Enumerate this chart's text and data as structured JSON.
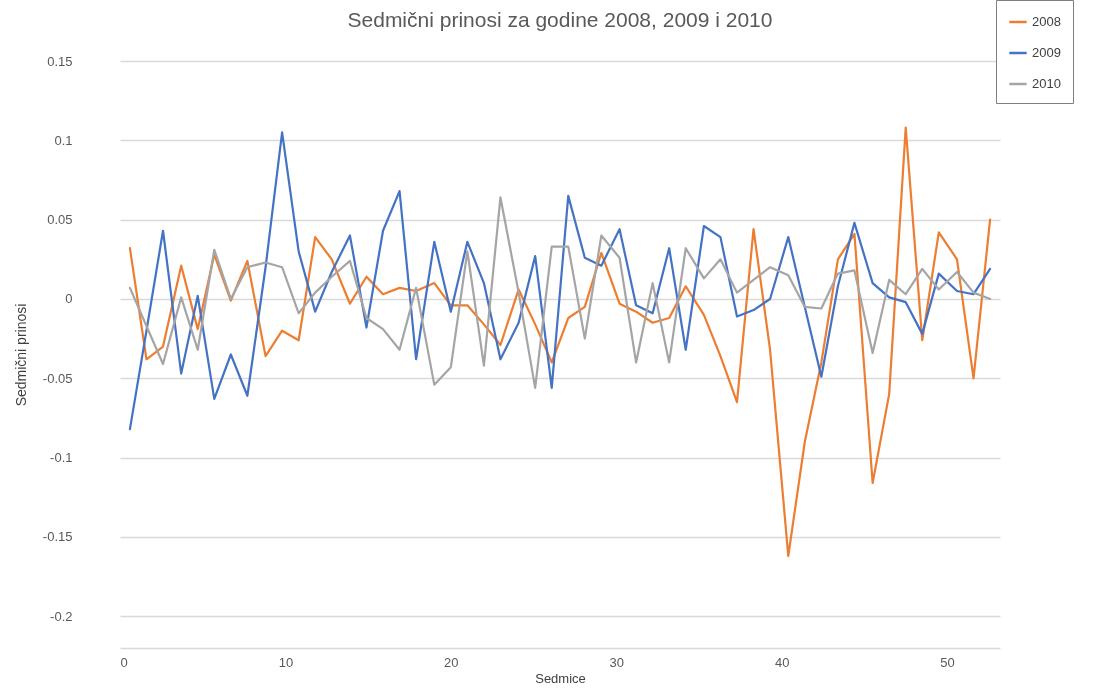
{
  "chart_data": {
    "type": "line",
    "title": "Sedmični prinosi za godine 2008, 2009 i 2010",
    "xlabel": "Sedmice",
    "ylabel": "Sedmični prinosi",
    "x": [
      0.6,
      1.6,
      2.6,
      3.7,
      4.7,
      5.7,
      6.7,
      7.7,
      8.8,
      9.8,
      10.8,
      11.8,
      12.8,
      13.9,
      14.9,
      15.9,
      16.9,
      17.9,
      19.0,
      20.0,
      21.0,
      22.0,
      23.0,
      24.1,
      25.1,
      26.1,
      27.1,
      28.1,
      29.1,
      30.2,
      31.2,
      32.2,
      33.2,
      34.2,
      35.3,
      36.3,
      37.3,
      38.3,
      39.3,
      40.4,
      41.4,
      42.4,
      43.4,
      44.4,
      45.5,
      46.5,
      47.5,
      48.5,
      49.5,
      50.6,
      51.6,
      52.6
    ],
    "series": [
      {
        "name": "2008",
        "color": "#ed7d31",
        "values": [
          0.032,
          -0.038,
          -0.03,
          0.021,
          -0.019,
          0.028,
          -0.001,
          0.024,
          -0.036,
          -0.02,
          -0.026,
          0.039,
          0.025,
          -0.003,
          0.014,
          0.003,
          0.007,
          0.005,
          0.01,
          -0.004,
          -0.004,
          -0.016,
          -0.029,
          0.006,
          -0.016,
          -0.04,
          -0.012,
          -0.005,
          0.029,
          -0.003,
          -0.008,
          -0.015,
          -0.012,
          0.008,
          -0.01,
          -0.036,
          -0.065,
          0.044,
          -0.032,
          -0.162,
          -0.09,
          -0.04,
          0.025,
          0.041,
          -0.116,
          -0.06,
          0.108,
          -0.026,
          0.042,
          0.025,
          -0.05,
          0.05
        ]
      },
      {
        "name": "2009",
        "color": "#4472c4",
        "values": [
          -0.082,
          -0.02,
          0.043,
          -0.047,
          0.002,
          -0.063,
          -0.035,
          -0.061,
          0.02,
          0.105,
          0.03,
          -0.008,
          0.017,
          0.04,
          -0.018,
          0.043,
          0.068,
          -0.038,
          0.036,
          -0.008,
          0.036,
          0.01,
          -0.038,
          -0.015,
          0.027,
          -0.056,
          0.065,
          0.026,
          0.021,
          0.044,
          -0.004,
          -0.009,
          0.032,
          -0.032,
          0.046,
          0.039,
          -0.011,
          -0.007,
          0.0,
          0.039,
          -0.005,
          -0.049,
          0.008,
          0.048,
          0.01,
          0.001,
          -0.002,
          -0.022,
          0.016,
          0.005,
          0.003,
          0.019
        ]
      },
      {
        "name": "2010",
        "color": "#a5a5a5",
        "values": [
          0.007,
          -0.017,
          -0.041,
          0.001,
          -0.032,
          0.031,
          0.0,
          0.02,
          0.023,
          0.02,
          -0.009,
          0.004,
          0.014,
          0.024,
          -0.012,
          -0.019,
          -0.032,
          0.007,
          -0.054,
          -0.043,
          0.03,
          -0.042,
          0.064,
          0.004,
          -0.056,
          0.033,
          0.033,
          -0.025,
          0.04,
          0.026,
          -0.04,
          0.01,
          -0.04,
          0.032,
          0.013,
          0.025,
          0.004,
          0.012,
          0.02,
          0.015,
          -0.005,
          -0.006,
          0.016,
          0.018,
          -0.034,
          0.012,
          0.003,
          0.019,
          0.006,
          0.017,
          0.004,
          0.0
        ]
      }
    ],
    "xlim": [
      0,
      53.2
    ],
    "xticks": [
      0,
      10,
      20,
      30,
      40,
      50
    ],
    "ylim": [
      -0.22,
      0.15
    ],
    "yticks": [
      -0.2,
      -0.15,
      -0.1,
      -0.05,
      0,
      0.05,
      0.1,
      0.15
    ],
    "grid": "y",
    "legend": "top right",
    "marker": "none",
    "line_style": "solid"
  }
}
